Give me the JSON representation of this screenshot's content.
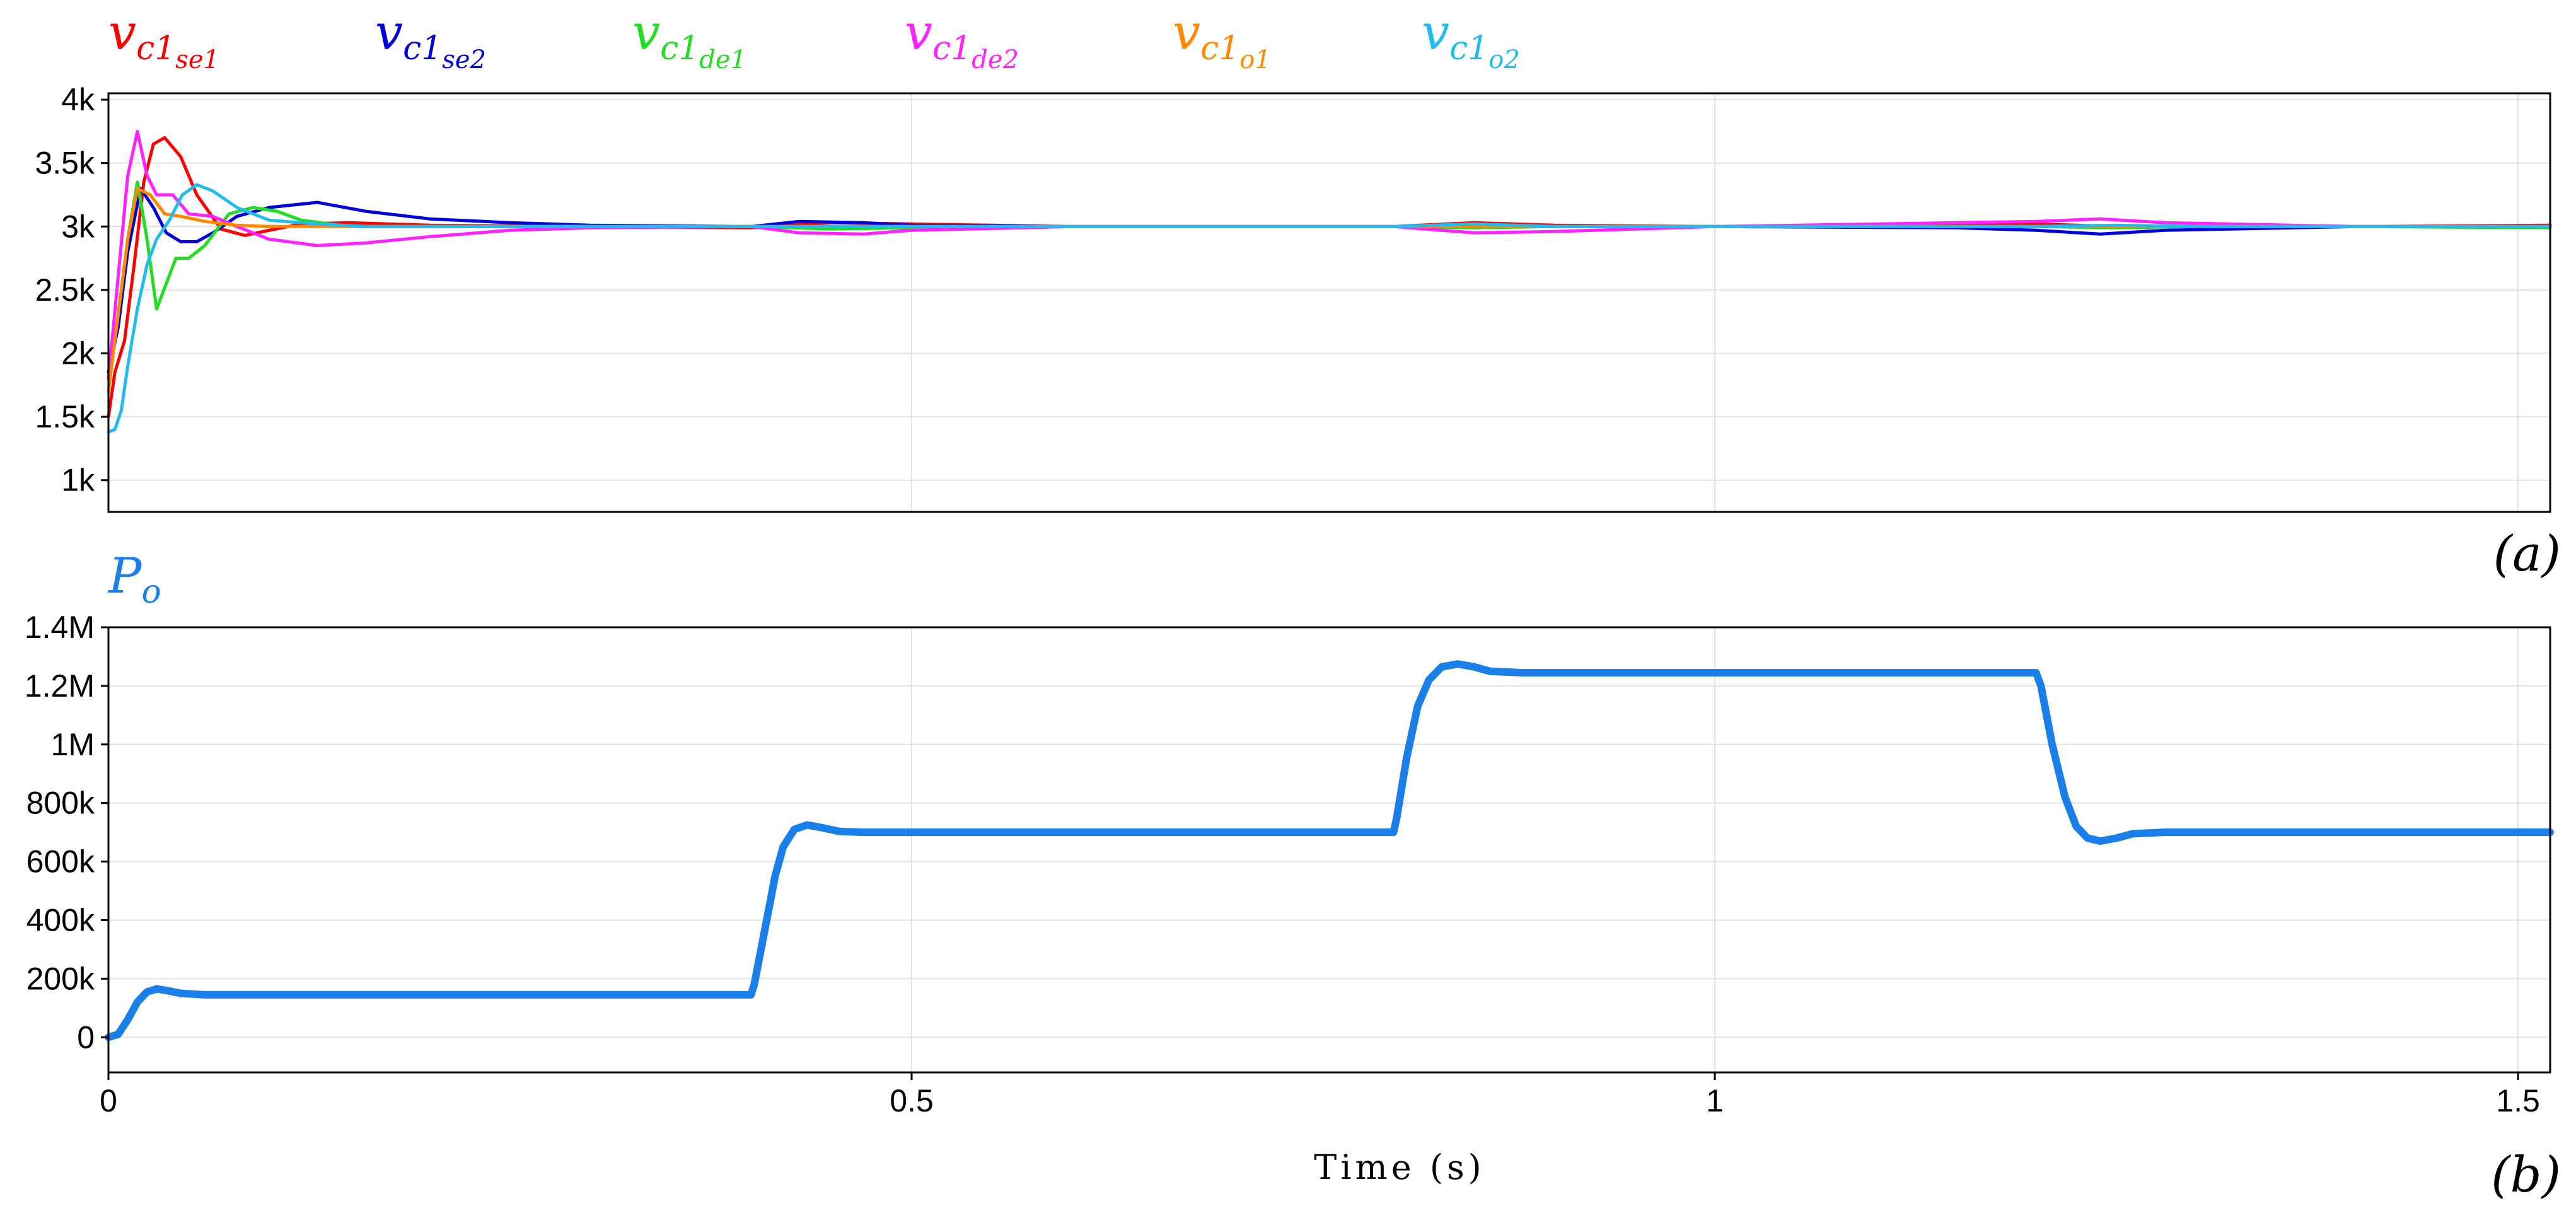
{
  "chart_data": [
    {
      "type": "line",
      "panel_label": "(a)",
      "legend_placement": "top",
      "grid": true,
      "xlim": [
        0,
        1.52
      ],
      "ylim": [
        750,
        4050
      ],
      "yticks": [
        1000,
        1500,
        2000,
        2500,
        3000,
        3500,
        4000
      ],
      "ytick_labels": [
        "1k",
        "1.5k",
        "2k",
        "2.5k",
        "3k",
        "3.5k",
        "4k"
      ],
      "series": [
        {
          "name": "vc1se1",
          "label_main": "v",
          "label_sub1": "c1",
          "label_sub2": "se1",
          "color": "#ff0000",
          "x": [
            0,
            0.004,
            0.01,
            0.016,
            0.022,
            0.028,
            0.035,
            0.045,
            0.055,
            0.07,
            0.085,
            0.1,
            0.12,
            0.15,
            0.2,
            0.3,
            0.4,
            0.45,
            0.5,
            0.6,
            0.7,
            0.8,
            0.85,
            0.9,
            1.0,
            1.1,
            1.2,
            1.25,
            1.3,
            1.4,
            1.52
          ],
          "y": [
            1500,
            1850,
            2100,
            2700,
            3350,
            3650,
            3700,
            3550,
            3250,
            2980,
            2930,
            2970,
            3020,
            3030,
            3010,
            3000,
            2990,
            3030,
            3020,
            3000,
            3000,
            3000,
            3030,
            3010,
            3000,
            3010,
            3020,
            3000,
            3000,
            3000,
            3010
          ]
        },
        {
          "name": "vc1se2",
          "label_main": "v",
          "label_sub1": "c1",
          "label_sub2": "se2",
          "color": "#0000dd",
          "x": [
            0,
            0.006,
            0.012,
            0.02,
            0.028,
            0.036,
            0.045,
            0.055,
            0.065,
            0.08,
            0.1,
            0.13,
            0.16,
            0.2,
            0.25,
            0.3,
            0.4,
            0.43,
            0.47,
            0.5,
            0.6,
            0.8,
            0.85,
            0.9,
            1.0,
            1.15,
            1.2,
            1.24,
            1.28,
            1.4,
            1.52
          ],
          "y": [
            1850,
            2200,
            2800,
            3300,
            3150,
            2950,
            2880,
            2880,
            2950,
            3080,
            3150,
            3190,
            3120,
            3060,
            3030,
            3010,
            3000,
            3040,
            3030,
            3010,
            3000,
            3000,
            3010,
            3000,
            3000,
            2990,
            2970,
            2940,
            2970,
            3000,
            3000
          ]
        },
        {
          "name": "vc1de1",
          "label_main": "v",
          "label_sub1": "c1",
          "label_sub2": "de1",
          "color": "#22dd22",
          "x": [
            0,
            0.006,
            0.012,
            0.018,
            0.024,
            0.03,
            0.036,
            0.042,
            0.05,
            0.06,
            0.075,
            0.09,
            0.105,
            0.12,
            0.15,
            0.2,
            0.3,
            0.4,
            0.45,
            0.5,
            0.6,
            0.8,
            0.85,
            0.9,
            1.0,
            1.2,
            1.25,
            1.3,
            1.4,
            1.52
          ],
          "y": [
            1800,
            2300,
            2900,
            3350,
            2900,
            2350,
            2550,
            2750,
            2750,
            2850,
            3100,
            3150,
            3120,
            3050,
            3000,
            3000,
            3000,
            3000,
            2980,
            2990,
            3000,
            3000,
            2990,
            3000,
            3000,
            3000,
            2990,
            3000,
            3000,
            2990
          ]
        },
        {
          "name": "vc1de2",
          "label_main": "v",
          "label_sub1": "c1",
          "label_sub2": "de2",
          "color": "#ff22ff",
          "x": [
            0,
            0.006,
            0.012,
            0.018,
            0.024,
            0.03,
            0.04,
            0.05,
            0.065,
            0.08,
            0.1,
            0.13,
            0.16,
            0.2,
            0.25,
            0.3,
            0.4,
            0.43,
            0.47,
            0.5,
            0.6,
            0.8,
            0.85,
            0.9,
            1.0,
            1.2,
            1.24,
            1.28,
            1.4,
            1.52
          ],
          "y": [
            1800,
            2600,
            3400,
            3750,
            3400,
            3250,
            3250,
            3100,
            3080,
            3000,
            2900,
            2850,
            2870,
            2920,
            2970,
            2990,
            3000,
            2950,
            2940,
            2970,
            3000,
            3000,
            2950,
            2960,
            3000,
            3040,
            3060,
            3030,
            3000,
            3000
          ]
        },
        {
          "name": "vc1o1",
          "label_main": "v",
          "label_sub1": "c1",
          "label_sub2": "o1",
          "color": "#ff8800",
          "x": [
            0,
            0.006,
            0.012,
            0.018,
            0.026,
            0.035,
            0.045,
            0.06,
            0.08,
            0.1,
            0.15,
            0.2,
            0.3,
            0.4,
            0.5,
            0.8,
            0.9,
            1.0,
            1.2,
            1.3,
            1.52
          ],
          "y": [
            1700,
            2300,
            2900,
            3300,
            3250,
            3100,
            3080,
            3040,
            3010,
            3000,
            3000,
            3000,
            3000,
            3000,
            3000,
            3000,
            3000,
            3000,
            3000,
            3000,
            3000
          ]
        },
        {
          "name": "vc1o2",
          "label_main": "v",
          "label_sub1": "c1",
          "label_sub2": "o2",
          "color": "#22bbee",
          "x": [
            0,
            0.004,
            0.008,
            0.012,
            0.018,
            0.024,
            0.03,
            0.038,
            0.046,
            0.055,
            0.065,
            0.08,
            0.1,
            0.13,
            0.16,
            0.2,
            0.3,
            0.4,
            0.5,
            0.8,
            0.85,
            0.9,
            1.0,
            1.2,
            1.25,
            1.3,
            1.52
          ],
          "y": [
            1380,
            1400,
            1550,
            1900,
            2350,
            2700,
            2900,
            3050,
            3250,
            3330,
            3280,
            3150,
            3050,
            3020,
            3000,
            3000,
            3000,
            3000,
            3000,
            3000,
            3020,
            3000,
            3000,
            3000,
            3010,
            3000,
            3000
          ]
        }
      ]
    },
    {
      "type": "line",
      "panel_label": "(b)",
      "legend_placement": "top-left",
      "grid": true,
      "xlim": [
        0,
        1.52
      ],
      "ylim": [
        -120000,
        1400000
      ],
      "xticks": [
        0,
        0.5,
        1,
        1.5
      ],
      "xtick_labels": [
        "0",
        "0.5",
        "1",
        "1.5"
      ],
      "yticks": [
        0,
        200000,
        400000,
        600000,
        800000,
        1000000,
        1200000,
        1400000
      ],
      "ytick_labels": [
        "0",
        "200k",
        "400k",
        "600k",
        "800k",
        "1M",
        "1.2M",
        "1.4M"
      ],
      "xlabel": "Time (s)",
      "series": [
        {
          "name": "Po",
          "label_main": "P",
          "label_sub1": "o",
          "label_sub2": "",
          "color": "#1a7fe8",
          "x": [
            0,
            0.006,
            0.012,
            0.018,
            0.024,
            0.03,
            0.036,
            0.045,
            0.06,
            0.1,
            0.2,
            0.3,
            0.4,
            0.402,
            0.408,
            0.415,
            0.42,
            0.427,
            0.435,
            0.445,
            0.455,
            0.47,
            0.5,
            0.6,
            0.7,
            0.8,
            0.802,
            0.808,
            0.815,
            0.822,
            0.83,
            0.84,
            0.85,
            0.86,
            0.88,
            0.9,
            1.0,
            1.1,
            1.2,
            1.203,
            1.21,
            1.218,
            1.225,
            1.232,
            1.24,
            1.25,
            1.26,
            1.28,
            1.3,
            1.4,
            1.52
          ],
          "y": [
            0,
            10000,
            60000,
            120000,
            155000,
            165000,
            160000,
            150000,
            145000,
            145000,
            145000,
            145000,
            145000,
            180000,
            350000,
            550000,
            650000,
            710000,
            725000,
            715000,
            703000,
            700000,
            700000,
            700000,
            700000,
            700000,
            750000,
            950000,
            1130000,
            1220000,
            1265000,
            1275000,
            1265000,
            1250000,
            1245000,
            1245000,
            1245000,
            1245000,
            1245000,
            1200000,
            1000000,
            820000,
            720000,
            680000,
            670000,
            680000,
            695000,
            700000,
            700000,
            700000,
            700000
          ]
        }
      ]
    }
  ]
}
